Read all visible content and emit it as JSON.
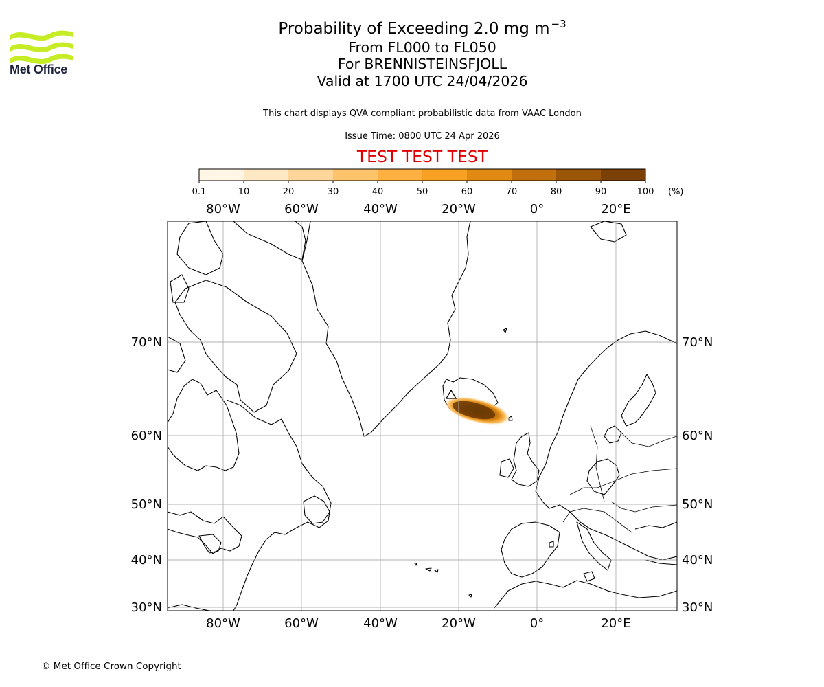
{
  "logo": {
    "brand": "Met Office",
    "icon": "met-office-wave-logo",
    "color": "#c6ec25"
  },
  "header": {
    "title_prefix": "Probability of Exceeding 2.0 mg m",
    "title_superscript": "−3",
    "line2": "From FL000 to FL050",
    "line3": "For BRENNISTEINSFJOLL",
    "line4": "Valid at 1700 UTC 24/04/2026",
    "description": "This chart displays QVA compliant probabilistic data from VAAC London",
    "issue_time": "Issue Time: 0800 UTC 24 Apr 2026",
    "test_banner": "TEST TEST TEST"
  },
  "colorbar": {
    "ticks": [
      "0.1",
      "10",
      "20",
      "30",
      "40",
      "50",
      "60",
      "70",
      "80",
      "90",
      "100"
    ],
    "unit": "(%)",
    "colors": [
      "#fff6e6",
      "#ffe8c4",
      "#ffd699",
      "#ffc36b",
      "#ffb040",
      "#f7a021",
      "#e08a14",
      "#c2700d",
      "#9c5608",
      "#7a4005"
    ]
  },
  "map": {
    "projection": "plate-carree-like",
    "lon_labels": [
      "80°W",
      "60°W",
      "40°W",
      "20°W",
      "0°",
      "20°E"
    ],
    "lat_labels": [
      "70°N",
      "60°N",
      "50°N",
      "40°N",
      "30°N"
    ],
    "gridlines": true,
    "volcano_marker": "triangle-icon",
    "plume": "probability plume south-east of Iceland"
  },
  "footer": {
    "copyright": "© Met Office Crown Copyright"
  }
}
